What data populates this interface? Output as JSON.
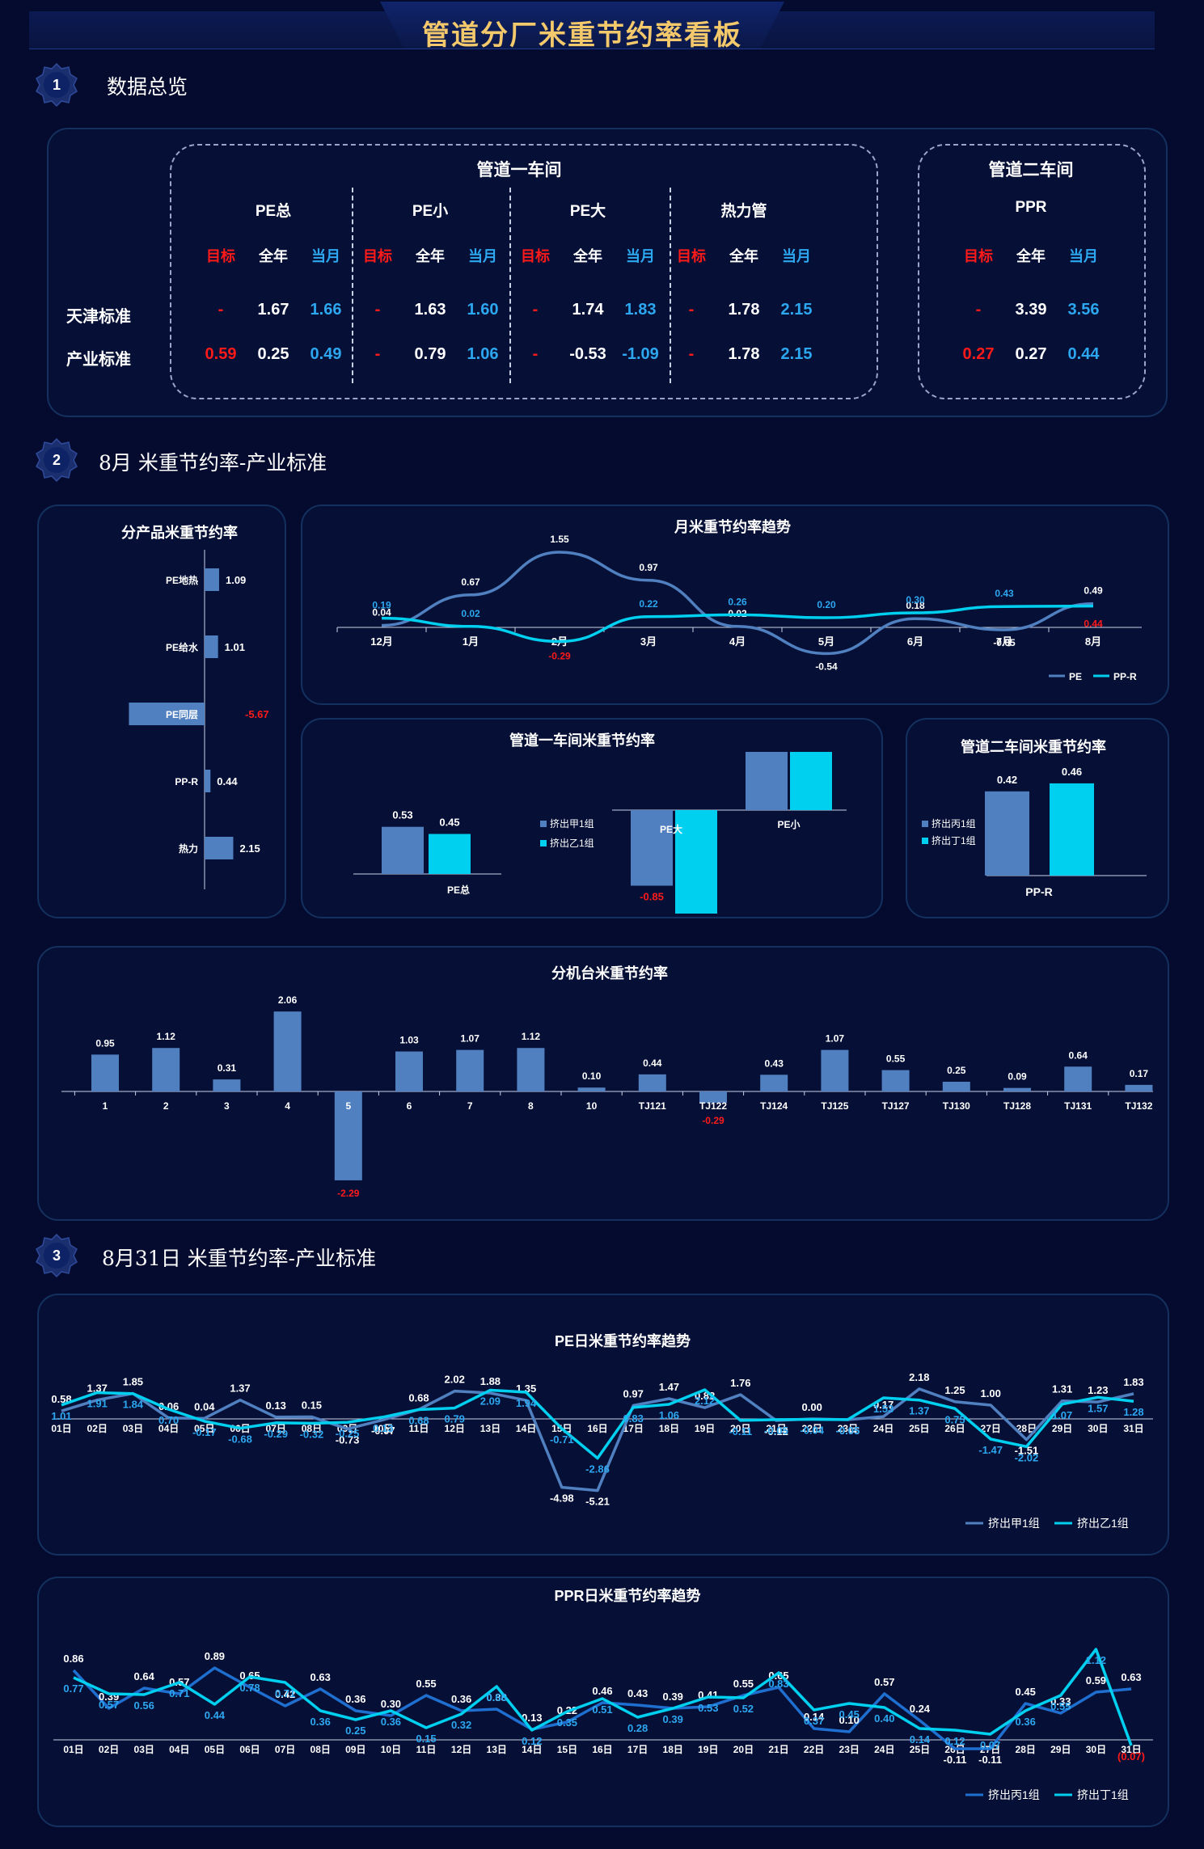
{
  "title": "管道分厂米重节约率看板",
  "sections": [
    {
      "num": "1",
      "title": "数据总览"
    },
    {
      "num": "2",
      "title": "8月 米重节约率-产业标准"
    },
    {
      "num": "3",
      "title": "8月31日 米重节约率-产业标准"
    }
  ],
  "overview": {
    "workshop1": "管道一车间",
    "workshop2": "管道二车间",
    "row_labels": [
      "天津标准",
      "产业标准"
    ],
    "col_headers": [
      "目标",
      "全年",
      "当月"
    ],
    "groups": [
      {
        "name": "PE总",
        "tianjin": [
          "-",
          "1.67",
          "1.66"
        ],
        "chanye": [
          "0.59",
          "0.25",
          "0.49"
        ]
      },
      {
        "name": "PE小",
        "tianjin": [
          "-",
          "1.63",
          "1.60"
        ],
        "chanye": [
          "-",
          "0.79",
          "1.06"
        ]
      },
      {
        "name": "PE大",
        "tianjin": [
          "-",
          "1.74",
          "1.83"
        ],
        "chanye": [
          "-",
          "-0.53",
          "-1.09"
        ]
      },
      {
        "name": "热力管",
        "tianjin": [
          "-",
          "1.78",
          "2.15"
        ],
        "chanye": [
          "-",
          "1.78",
          "2.15"
        ]
      },
      {
        "name": "PPR",
        "tianjin": [
          "-",
          "3.39",
          "3.56"
        ],
        "chanye": [
          "0.27",
          "0.27",
          "0.44"
        ]
      }
    ]
  },
  "colors": {
    "bg": "#050b2e",
    "panel_border": "#14305e",
    "steel": "#5080c0",
    "cyan": "#00d0f0",
    "red": "#ff1a1a",
    "blue_text": "#2ca7f0",
    "title": "#f4c96b"
  },
  "chart_data": [
    {
      "id": "product",
      "type": "bar",
      "orientation": "horizontal",
      "title": "分产品米重节约率",
      "categories": [
        "PE地热",
        "PE给水",
        "PE同层",
        "PP-R",
        "热力"
      ],
      "values": [
        1.09,
        1.01,
        -5.67,
        0.44,
        2.15
      ],
      "labels": [
        "1.09",
        "1.01",
        "-5.67",
        "0.44",
        "2.15"
      ]
    },
    {
      "id": "monthly",
      "type": "line",
      "title": "月米重节约率趋势",
      "categories": [
        "12月",
        "1月",
        "2月",
        "3月",
        "4月",
        "5月",
        "6月",
        "7月",
        "8月"
      ],
      "series": [
        {
          "name": "PE",
          "values": [
            0.04,
            0.67,
            1.55,
            0.97,
            0.02,
            -0.54,
            0.18,
            -0.05,
            0.49
          ],
          "labels": [
            "0.04",
            "0.67",
            "1.55",
            "0.97",
            "0.02",
            "-0.54",
            "0.18",
            "-0.05",
            "0.49"
          ]
        },
        {
          "name": "PP-R",
          "values": [
            0.19,
            0.02,
            -0.29,
            0.22,
            0.26,
            0.2,
            0.3,
            0.43,
            0.44
          ],
          "labels": [
            "0.19",
            "0.02",
            "-0.29",
            "0.22",
            "0.26",
            "0.20",
            "0.30",
            "0.43",
            "0.44"
          ]
        }
      ]
    },
    {
      "id": "ws1",
      "type": "bar",
      "title": "管道一车间米重节约率",
      "categories": [
        "PE总",
        "PE大",
        "PE小"
      ],
      "series": [
        {
          "name": "挤出甲1组",
          "values": [
            0.53,
            -0.85,
            1.04
          ],
          "labels": [
            "0.53",
            "-0.85",
            "1.04"
          ]
        },
        {
          "name": "挤出乙1组",
          "values": [
            0.45,
            -1.35,
            1.08
          ],
          "labels": [
            "0.45",
            "-1.35",
            "1.08"
          ]
        }
      ]
    },
    {
      "id": "ws2",
      "type": "bar",
      "title": "管道二车间米重节约率",
      "categories": [
        "PP-R"
      ],
      "series": [
        {
          "name": "挤出丙1组",
          "values": [
            0.42
          ],
          "labels": [
            "0.42"
          ]
        },
        {
          "name": "挤出丁1组",
          "values": [
            0.46
          ],
          "labels": [
            "0.46"
          ]
        }
      ]
    },
    {
      "id": "machine",
      "type": "bar",
      "title": "分机台米重节约率",
      "categories": [
        "1",
        "2",
        "3",
        "4",
        "5",
        "6",
        "7",
        "8",
        "10",
        "TJ121",
        "TJ122",
        "TJ124",
        "TJ125",
        "TJ127",
        "TJ130",
        "TJ128",
        "TJ131",
        "TJ132"
      ],
      "values": [
        0.95,
        1.12,
        0.31,
        2.06,
        -2.29,
        1.03,
        1.07,
        1.12,
        0.1,
        0.44,
        -0.29,
        0.43,
        1.07,
        0.55,
        0.25,
        0.09,
        0.64,
        0.17
      ],
      "labels": [
        "0.95",
        "1.12",
        "0.31",
        "2.06",
        "-2.29",
        "1.03",
        "1.07",
        "1.12",
        "0.10",
        "0.44",
        "-0.29",
        "0.43",
        "1.07",
        "0.55",
        "0.25",
        "0.09",
        "0.64",
        "0.17"
      ]
    },
    {
      "id": "pe_daily",
      "type": "line",
      "title": "PE日米重节约率趋势",
      "categories": [
        "01日",
        "02日",
        "03日",
        "04日",
        "05日",
        "06日",
        "07日",
        "08日",
        "09日",
        "10日",
        "11日",
        "12日",
        "13日",
        "14日",
        "15日",
        "16日",
        "17日",
        "18日",
        "19日",
        "20日",
        "21日",
        "22日",
        "23日",
        "24日",
        "25日",
        "26日",
        "27日",
        "28日",
        "29日",
        "30日",
        "31日"
      ],
      "series": [
        {
          "name": "挤出甲1组",
          "values": [
            0.58,
            1.37,
            1.85,
            0.06,
            0.04,
            1.37,
            0.13,
            0.15,
            -0.73,
            -0.07,
            0.68,
            2.02,
            1.88,
            1.35,
            -4.98,
            -5.21,
            0.97,
            1.47,
            0.82,
            1.76,
            -0.12,
            0.0,
            -0.06,
            0.17,
            2.18,
            1.25,
            1.0,
            -1.51,
            1.31,
            1.23,
            1.83
          ],
          "labels": [
            "0.58",
            "1.37",
            "1.85",
            "0.06",
            "0.04",
            "1.37",
            "0.13",
            "0.15",
            "-0.73",
            "-0.07",
            "0.68",
            "2.02",
            "1.88",
            "1.35",
            "-4.98",
            "-5.21",
            "0.97",
            "1.47",
            "0.82",
            "1.76",
            "-0.12",
            "0.00",
            "-0.06",
            "0.17",
            "2.18",
            "1.25",
            "1.00",
            "-1.51",
            "1.31",
            "1.23",
            "1.83"
          ]
        },
        {
          "name": "挤出乙1组",
          "values": [
            1.01,
            1.91,
            1.84,
            0.7,
            -0.17,
            -0.68,
            -0.29,
            -0.32,
            -0.25,
            0.13,
            0.68,
            0.79,
            2.09,
            1.94,
            -0.71,
            -2.86,
            0.83,
            1.06,
            2.12,
            -0.11,
            -0.05,
            -0.04,
            -0.05,
            1.53,
            1.37,
            0.75,
            -1.47,
            -2.02,
            1.07,
            1.57,
            1.28
          ],
          "labels": [
            "1.01",
            "1.91",
            "1.84",
            "0.70",
            "-0.17",
            "-0.68",
            "-0.29",
            "-0.32",
            "-0.25",
            "0.13",
            "0.68",
            "0.79",
            "2.09",
            "1.94",
            "-0.71",
            "-2.86",
            "0.83",
            "1.06",
            "2.12",
            "-0.11",
            "-0.05",
            "-0.04",
            "-0.05",
            "1.53",
            "1.37",
            "0.75",
            "-1.47",
            "-2.02",
            "1.07",
            "1.57",
            "1.28"
          ]
        }
      ]
    },
    {
      "id": "ppr_daily",
      "type": "line",
      "title": "PPR日米重节约率趋势",
      "categories": [
        "01日",
        "02日",
        "03日",
        "04日",
        "05日",
        "06日",
        "07日",
        "08日",
        "09日",
        "10日",
        "11日",
        "12日",
        "13日",
        "14日",
        "15日",
        "16日",
        "17日",
        "18日",
        "19日",
        "20日",
        "21日",
        "22日",
        "23日",
        "24日",
        "25日",
        "26日",
        "27日",
        "28日",
        "29日",
        "30日",
        "31日"
      ],
      "series": [
        {
          "name": "挤出丙1组",
          "values": [
            0.86,
            0.39,
            0.64,
            0.57,
            0.89,
            0.65,
            0.42,
            0.63,
            0.36,
            0.3,
            0.55,
            0.36,
            0.38,
            0.13,
            0.22,
            0.46,
            0.43,
            0.39,
            0.41,
            0.55,
            0.65,
            0.14,
            0.1,
            0.57,
            0.24,
            -0.11,
            -0.11,
            0.45,
            0.33,
            0.59,
            0.63
          ],
          "labels": [
            "0.86",
            "0.39",
            "0.64",
            "0.57",
            "0.89",
            "0.65",
            "0.42",
            "0.63",
            "0.36",
            "0.30",
            "0.55",
            "0.36",
            "0.38",
            "0.13",
            "0.22",
            "0.46",
            "0.43",
            "0.39",
            "0.41",
            "0.55",
            "0.65",
            "0.14",
            "0.10",
            "0.57",
            "0.24",
            "-0.11",
            "-0.11",
            "0.45",
            "0.33",
            "0.59",
            "0.63"
          ]
        },
        {
          "name": "挤出丁1组",
          "values": [
            0.77,
            0.57,
            0.56,
            0.71,
            0.44,
            0.78,
            0.71,
            0.36,
            0.25,
            0.36,
            0.15,
            0.32,
            0.66,
            0.12,
            0.35,
            0.51,
            0.28,
            0.39,
            0.53,
            0.52,
            0.83,
            0.37,
            0.45,
            0.4,
            0.14,
            0.12,
            0.07,
            0.36,
            0.55,
            1.12,
            -0.07
          ],
          "labels": [
            "0.77",
            "0.57",
            "0.56",
            "0.71",
            "0.44",
            "0.78",
            "0.71",
            "0.36",
            "0.25",
            "0.36",
            "0.15",
            "0.32",
            "0.66",
            "0.12",
            "0.35",
            "0.51",
            "0.28",
            "0.39",
            "0.53",
            "0.52",
            "0.83",
            "0.37",
            "0.45",
            "0.40",
            "0.14",
            "0.12",
            "0.07",
            "0.36",
            "0.55",
            "1.12",
            "(0.07)"
          ]
        }
      ]
    }
  ]
}
